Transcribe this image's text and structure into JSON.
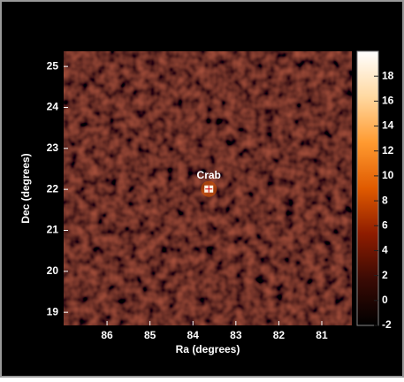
{
  "chart_data": {
    "type": "heatmap",
    "xlabel": "Ra (degrees)",
    "ylabel": "Dec (degrees)",
    "xlim": [
      87.01,
      80.3
    ],
    "xticks": [
      86,
      85,
      84,
      83,
      82,
      81
    ],
    "ylim": [
      18.68,
      25.37
    ],
    "yticks": [
      19,
      20,
      21,
      22,
      23,
      24,
      25
    ],
    "clim": [
      -2,
      20
    ],
    "cticks": [
      -2,
      0,
      2,
      4,
      6,
      8,
      10,
      12,
      14,
      16,
      18
    ],
    "colormap": [
      "#000000",
      "#3a0a04",
      "#8e1c00",
      "#e05a00",
      "#ff9a30",
      "#ffd8a0",
      "#ffffff"
    ],
    "sources": [
      {
        "name": "Crab",
        "ra": 83.63,
        "dec": 22.01,
        "value": 19
      }
    ]
  }
}
